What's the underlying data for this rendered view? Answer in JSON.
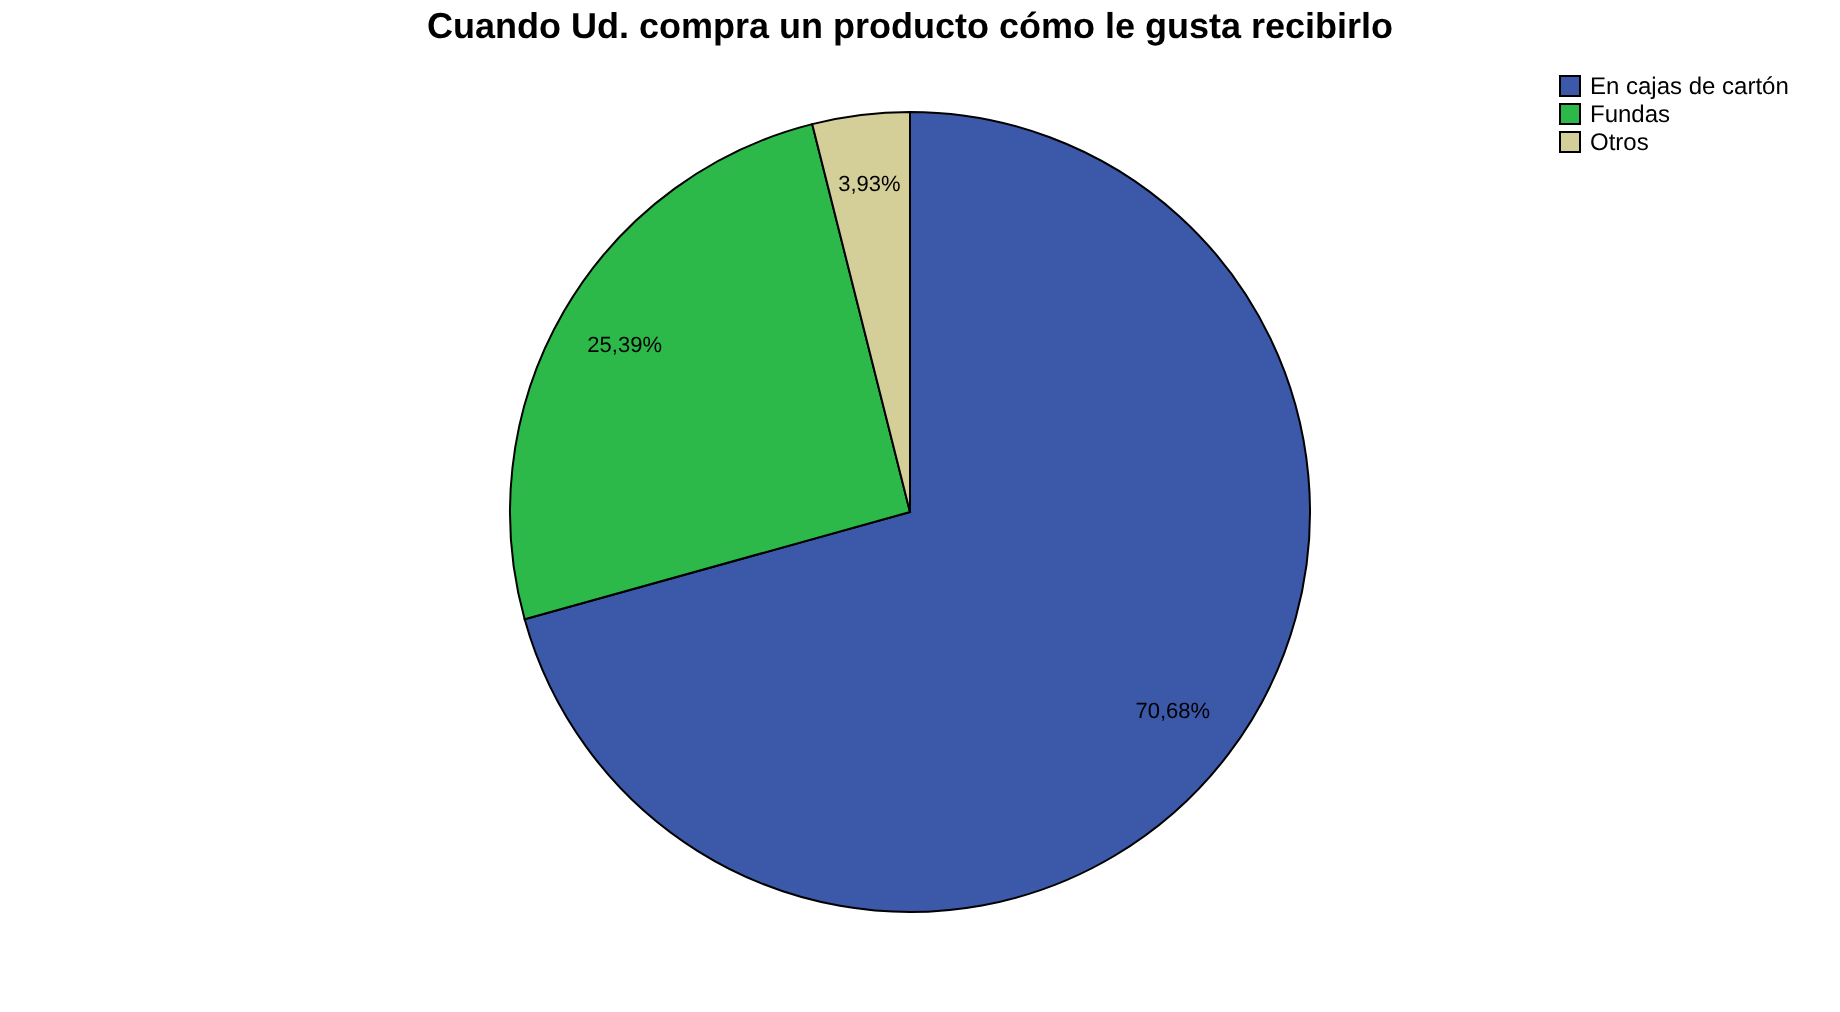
{
  "chart_data": {
    "type": "pie",
    "title": "Cuando Ud. compra un producto cómo le gusta recibirlo",
    "categories": [
      "En cajas de cartón",
      "Fundas",
      "Otros"
    ],
    "values": [
      70.68,
      25.39,
      3.93
    ],
    "colors": [
      "#3c58a8",
      "#2db84a",
      "#d4cf98"
    ],
    "value_labels": [
      "70,68%",
      "25,39%",
      "3,93%"
    ],
    "legend": "top right"
  }
}
